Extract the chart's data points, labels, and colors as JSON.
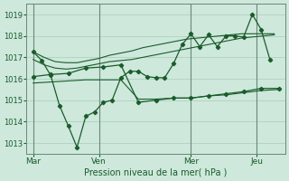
{
  "xlabel": "Pression niveau de la mer( hPa )",
  "ylim": [
    1012.5,
    1019.5
  ],
  "yticks": [
    1013,
    1014,
    1015,
    1016,
    1017,
    1018,
    1019
  ],
  "bg_color": "#cee8dc",
  "grid_color": "#aaccbb",
  "line_color": "#1a5c2a",
  "vline_color": "#6a8878",
  "xlabel_color": "#1a5c2a",
  "tick_color": "#1a5c2a",
  "xtick_labels": [
    "Mar",
    "Ven",
    "Mer",
    "Jeu"
  ],
  "xtick_positions": [
    0,
    30,
    72,
    102
  ],
  "xlim": [
    -3,
    115
  ],
  "series_smooth1_x": [
    0,
    5,
    10,
    15,
    20,
    25,
    30,
    35,
    40,
    45,
    50,
    55,
    60,
    65,
    70,
    75,
    80,
    85,
    90,
    95,
    100,
    105,
    110
  ],
  "series_smooth1_y": [
    1017.25,
    1017.0,
    1016.8,
    1016.75,
    1016.75,
    1016.85,
    1016.95,
    1017.1,
    1017.2,
    1017.3,
    1017.45,
    1017.55,
    1017.65,
    1017.75,
    1017.85,
    1017.9,
    1017.95,
    1018.0,
    1018.05,
    1018.1,
    1018.1,
    1018.1,
    1018.1
  ],
  "series_smooth2_x": [
    0,
    5,
    10,
    15,
    20,
    25,
    30,
    35,
    40,
    45,
    50,
    55,
    60,
    65,
    70,
    75,
    80,
    85,
    90,
    95,
    100,
    105,
    110
  ],
  "series_smooth2_y": [
    1016.9,
    1016.65,
    1016.5,
    1016.45,
    1016.5,
    1016.6,
    1016.7,
    1016.8,
    1016.85,
    1016.9,
    1017.0,
    1017.1,
    1017.2,
    1017.3,
    1017.4,
    1017.5,
    1017.6,
    1017.7,
    1017.8,
    1017.9,
    1017.95,
    1018.0,
    1018.05
  ],
  "series_main_x": [
    0,
    4,
    8,
    12,
    16,
    20,
    24,
    28,
    32,
    36,
    40,
    44,
    48,
    52,
    56,
    60,
    64,
    68,
    72,
    76,
    80,
    84,
    88,
    92,
    96,
    100,
    104,
    108
  ],
  "series_main_y": [
    1017.25,
    1016.85,
    1016.15,
    1014.75,
    1013.8,
    1012.8,
    1014.25,
    1014.45,
    1014.9,
    1015.0,
    1016.05,
    1016.35,
    1016.35,
    1016.1,
    1016.05,
    1016.05,
    1016.7,
    1017.6,
    1018.1,
    1017.5,
    1018.05,
    1017.5,
    1018.0,
    1018.0,
    1017.95,
    1019.0,
    1018.3,
    1016.9
  ],
  "series_lower_x": [
    0,
    8,
    16,
    24,
    32,
    40,
    48,
    56,
    64,
    72,
    80,
    88,
    96,
    104,
    112
  ],
  "series_lower_y": [
    1016.1,
    1016.2,
    1016.25,
    1016.5,
    1016.55,
    1016.65,
    1014.9,
    1015.0,
    1015.1,
    1015.1,
    1015.2,
    1015.3,
    1015.4,
    1015.55,
    1015.55
  ],
  "series_smooth3_x": [
    0,
    8,
    16,
    24,
    32,
    40,
    48,
    56,
    64,
    72,
    80,
    88,
    96,
    104,
    112
  ],
  "series_smooth3_y": [
    1015.8,
    1015.85,
    1015.9,
    1015.95,
    1015.95,
    1015.95,
    1015.05,
    1015.05,
    1015.1,
    1015.1,
    1015.2,
    1015.25,
    1015.35,
    1015.45,
    1015.5
  ]
}
